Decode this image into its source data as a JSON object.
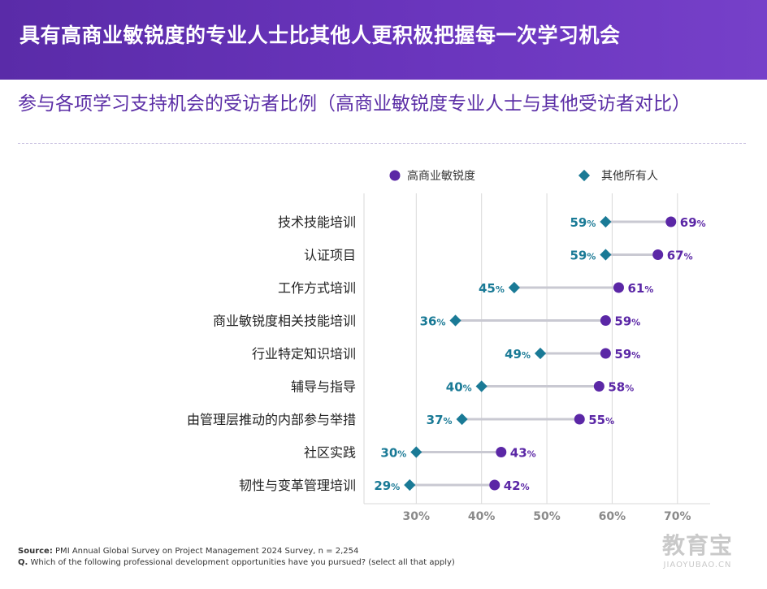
{
  "header": {
    "title": "具有高商业敏锐度的专业人士比其他人更积极把握每一次学习机会"
  },
  "subtitle": "参与各项学习支持机会的受访者比例（高商业敏锐度专业人士与其他受访者对比）",
  "colors": {
    "high": "#5b27a6",
    "others": "#1a7a96",
    "connector": "#c9c9d2",
    "grid": "#d9d9d9"
  },
  "chart_data": {
    "type": "dumbbell",
    "orientation": "horizontal",
    "xlim": [
      22,
      75
    ],
    "ticks": [
      30,
      40,
      50,
      60,
      70
    ],
    "tick_labels": [
      "30%",
      "40%",
      "50%",
      "60%",
      "70%"
    ],
    "legend": {
      "high_label": "高商业敏锐度",
      "others_label": "其他所有人",
      "placement": "top"
    },
    "categories": [
      "技术技能培训",
      "认证项目",
      "工作方式培训",
      "商业敏锐度相关技能培训",
      "行业特定知识培训",
      "辅导与指导",
      "由管理层推动的内部参与举措",
      "社区实践",
      "韧性与变革管理培训"
    ],
    "series": [
      {
        "name": "高商业敏锐度",
        "values": [
          69,
          67,
          61,
          59,
          59,
          58,
          55,
          43,
          42
        ]
      },
      {
        "name": "其他所有人",
        "values": [
          59,
          59,
          45,
          36,
          49,
          40,
          37,
          30,
          29
        ]
      }
    ],
    "value_suffix": "%"
  },
  "source": {
    "label": "Source:",
    "text": "PMI Annual Global Survey on Project Management 2024 Survey, n = 2,254",
    "q_label": "Q.",
    "q_text": "Which of the following professional development opportunities have you pursued? (select all that apply)"
  },
  "watermark": {
    "main": "教育宝",
    "sub": "JIAOYUBAO.CN"
  }
}
